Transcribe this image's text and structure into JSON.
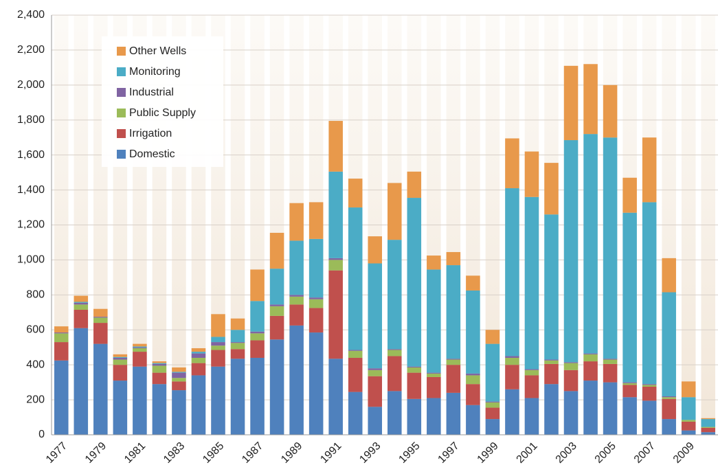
{
  "chart_data": {
    "type": "stacked_bar",
    "categories": [
      "1977",
      null,
      "1979",
      null,
      "1981",
      null,
      "1983",
      null,
      "1985",
      null,
      "1987",
      null,
      "1989",
      null,
      "1991",
      null,
      "1993",
      null,
      "1995",
      null,
      "1997",
      null,
      "1999",
      null,
      "2001",
      null,
      "2003",
      null,
      "2005",
      null,
      "2007",
      null,
      "2009",
      null
    ],
    "series": [
      {
        "name": "Domestic",
        "color": "#4f81bd",
        "values": [
          425,
          610,
          520,
          310,
          390,
          290,
          255,
          340,
          390,
          435,
          440,
          545,
          625,
          585,
          435,
          245,
          160,
          250,
          205,
          210,
          240,
          170,
          90,
          260,
          210,
          290,
          250,
          310,
          300,
          215,
          195,
          90,
          25,
          15
        ]
      },
      {
        "name": "Irrigation",
        "color": "#c0504d",
        "values": [
          105,
          105,
          120,
          90,
          85,
          65,
          50,
          70,
          95,
          55,
          100,
          135,
          120,
          140,
          505,
          195,
          175,
          200,
          150,
          120,
          160,
          120,
          65,
          140,
          130,
          115,
          120,
          110,
          105,
          70,
          80,
          115,
          50,
          25
        ]
      },
      {
        "name": "Public Supply",
        "color": "#9bbb59",
        "values": [
          50,
          30,
          30,
          30,
          20,
          40,
          20,
          30,
          25,
          35,
          40,
          55,
          45,
          50,
          60,
          40,
          35,
          35,
          30,
          20,
          30,
          50,
          30,
          40,
          30,
          20,
          40,
          40,
          25,
          10,
          10,
          10,
          10,
          5
        ]
      },
      {
        "name": "Industrial",
        "color": "#8064a2",
        "values": [
          5,
          10,
          5,
          10,
          5,
          10,
          30,
          25,
          20,
          5,
          10,
          10,
          10,
          10,
          10,
          5,
          10,
          5,
          5,
          5,
          5,
          10,
          5,
          10,
          5,
          5,
          5,
          5,
          5,
          5,
          5,
          5,
          0,
          0
        ]
      },
      {
        "name": "Monitoring",
        "color": "#4bacc6",
        "values": [
          0,
          5,
          0,
          5,
          5,
          5,
          5,
          10,
          30,
          70,
          175,
          205,
          310,
          335,
          495,
          815,
          600,
          625,
          965,
          590,
          535,
          475,
          330,
          960,
          985,
          830,
          1270,
          1255,
          1265,
          970,
          1040,
          595,
          130,
          45
        ]
      },
      {
        "name": "Other Wells",
        "color": "#e8994b",
        "values": [
          35,
          35,
          45,
          15,
          15,
          10,
          25,
          20,
          130,
          65,
          180,
          205,
          215,
          210,
          290,
          165,
          155,
          325,
          150,
          80,
          75,
          85,
          80,
          285,
          260,
          295,
          425,
          400,
          300,
          200,
          370,
          195,
          90,
          5
        ]
      }
    ],
    "ylim": [
      0,
      2400
    ],
    "yticks": [
      0,
      200,
      400,
      600,
      800,
      {
        "value": 1000,
        "label": "1,000"
      },
      {
        "value": 1200,
        "label": "1,200"
      },
      {
        "value": 1400,
        "label": "1,400"
      },
      {
        "value": 1600,
        "label": "1,600"
      },
      {
        "value": 1800,
        "label": "1,800"
      },
      {
        "value": 2000,
        "label": "2,000"
      },
      {
        "value": 2200,
        "label": "2,200"
      },
      {
        "value": 2400,
        "label": "2,400"
      }
    ],
    "grid": true,
    "legend": "upper left"
  }
}
